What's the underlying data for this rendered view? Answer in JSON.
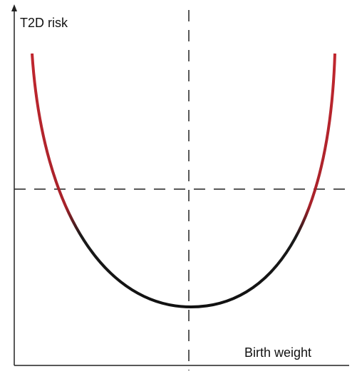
{
  "y_axis": {
    "label": "T2D risk"
  },
  "x_axis": {
    "label": "Birth weight"
  }
}
